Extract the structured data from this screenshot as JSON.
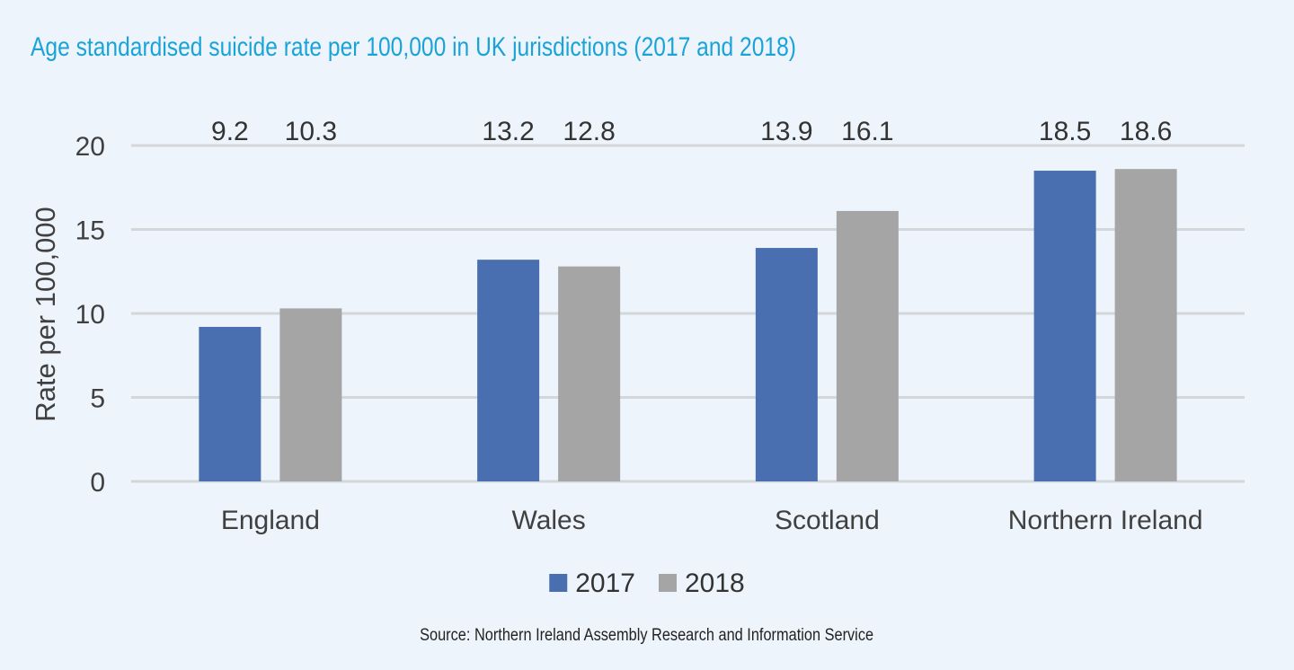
{
  "chart_data": {
    "type": "bar",
    "title": "Age standardised suicide rate per 100,000 in UK jurisdictions (2017 and 2018)",
    "xlabel": "",
    "ylabel": "Rate per 100,000",
    "categories": [
      "England",
      "Wales",
      "Scotland",
      "Northern Ireland"
    ],
    "series": [
      {
        "name": "2017",
        "values": [
          9.2,
          13.2,
          13.9,
          18.5
        ],
        "color": "#4a6fb0"
      },
      {
        "name": "2018",
        "values": [
          10.3,
          12.8,
          16.1,
          18.6
        ],
        "color": "#a5a5a5"
      }
    ],
    "ylim": [
      0,
      20
    ],
    "yticks": [
      0,
      5,
      10,
      15,
      20
    ],
    "grid": true,
    "legend": "bottom",
    "source": "Source: Northern Ireland Assembly Research and Information Service"
  }
}
